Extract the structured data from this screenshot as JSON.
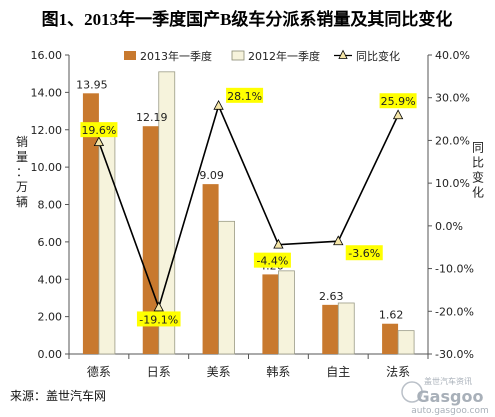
{
  "chart_data": {
    "type": "bar",
    "title": "图1、2013年一季度国产B级车分派系销量及其同比变化",
    "categories": [
      "德系",
      "日系",
      "美系",
      "韩系",
      "自主",
      "法系"
    ],
    "series": [
      {
        "name": "2013年一季度",
        "type": "bar",
        "axis": "left",
        "color": "#c8792e",
        "values": [
          13.95,
          12.19,
          9.09,
          4.26,
          2.63,
          1.62
        ],
        "labels": [
          "13.95",
          "12.19",
          "9.09",
          "4.26",
          "2.63",
          "1.62"
        ]
      },
      {
        "name": "2012年一季度",
        "type": "bar",
        "axis": "left",
        "color": "#f6f3dc",
        "values": [
          11.7,
          15.1,
          7.1,
          4.45,
          2.73,
          1.25
        ]
      },
      {
        "name": "同比变化",
        "type": "line",
        "axis": "right",
        "color": "#000000",
        "values": [
          19.6,
          -19.1,
          28.1,
          -4.4,
          -3.6,
          25.9
        ],
        "labels": [
          "19.6%",
          "-19.1%",
          "28.1%",
          "-4.4%",
          "-3.6%",
          "25.9%"
        ]
      }
    ],
    "ylabel": "销量：万辆",
    "ylabel_right": "同比变化",
    "ylim": [
      0,
      16
    ],
    "ylim_right": [
      -30,
      40
    ],
    "yticks": [
      "0.00",
      "2.00",
      "4.00",
      "6.00",
      "8.00",
      "10.00",
      "12.00",
      "14.00",
      "16.00"
    ],
    "yticks_right": [
      "-30.0%",
      "-20.0%",
      "-10.0%",
      "0.0%",
      "10.0%",
      "20.0%",
      "30.0%",
      "40.0%"
    ],
    "legend_position": "top",
    "grid": false,
    "label_highlight_color": "#ffff00"
  },
  "footer": {
    "source": "来源：盖世汽车网"
  },
  "watermark": {
    "line1": "盖世汽车资讯",
    "line2": "Gasgoo",
    "line3": "auto.gasgoo.com"
  }
}
